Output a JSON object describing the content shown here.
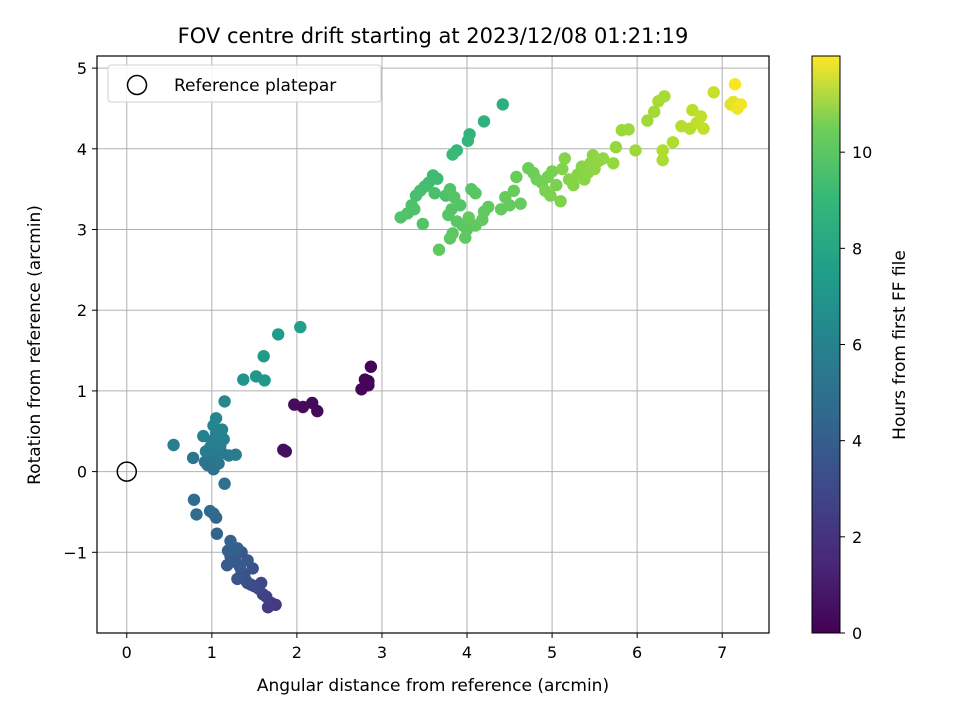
{
  "chart_data": {
    "type": "scatter",
    "title": "FOV centre drift starting at 2023/12/08 01:21:19",
    "xlabel": "Angular distance from reference (arcmin)",
    "ylabel": "Rotation from reference (arcmin)",
    "xlim": [
      -0.35,
      7.55
    ],
    "ylim": [
      -2.0,
      5.15
    ],
    "xticks": [
      0,
      1,
      2,
      3,
      4,
      5,
      6,
      7
    ],
    "yticks": [
      -1,
      0,
      1,
      2,
      3,
      4,
      5
    ],
    "grid": true,
    "legend": {
      "placement": "top-left",
      "entries": [
        {
          "label": "Reference platepar",
          "marker": "open-circle"
        }
      ]
    },
    "reference_point": {
      "x": 0,
      "y": 0
    },
    "colorbar": {
      "label": "Hours from first FF file",
      "colormap": "viridis",
      "range": [
        0,
        12
      ],
      "ticks": [
        0,
        2,
        4,
        6,
        8,
        10
      ]
    },
    "point_color_value": "hours",
    "points": [
      {
        "x": 2.87,
        "y": 1.3,
        "hours": 0.1
      },
      {
        "x": 2.84,
        "y": 1.12,
        "hours": 0.12
      },
      {
        "x": 2.8,
        "y": 1.14,
        "hours": 0.14
      },
      {
        "x": 2.84,
        "y": 1.07,
        "hours": 0.16
      },
      {
        "x": 2.76,
        "y": 1.02,
        "hours": 0.18
      },
      {
        "x": 2.24,
        "y": 0.75,
        "hours": 0.25
      },
      {
        "x": 2.18,
        "y": 0.85,
        "hours": 0.28
      },
      {
        "x": 2.07,
        "y": 0.8,
        "hours": 0.3
      },
      {
        "x": 1.97,
        "y": 0.83,
        "hours": 0.33
      },
      {
        "x": 1.84,
        "y": 0.27,
        "hours": 0.45
      },
      {
        "x": 1.87,
        "y": 0.25,
        "hours": 0.48
      },
      {
        "x": 1.75,
        "y": -1.65,
        "hours": 2.0
      },
      {
        "x": 1.7,
        "y": -1.63,
        "hours": 2.1
      },
      {
        "x": 1.66,
        "y": -1.68,
        "hours": 2.2
      },
      {
        "x": 1.64,
        "y": -1.55,
        "hours": 2.3
      },
      {
        "x": 1.6,
        "y": -1.52,
        "hours": 2.4
      },
      {
        "x": 1.58,
        "y": -1.38,
        "hours": 2.5
      },
      {
        "x": 1.55,
        "y": -1.45,
        "hours": 2.6
      },
      {
        "x": 1.5,
        "y": -1.42,
        "hours": 2.7
      },
      {
        "x": 1.46,
        "y": -1.4,
        "hours": 2.8
      },
      {
        "x": 1.42,
        "y": -1.38,
        "hours": 2.9
      },
      {
        "x": 1.4,
        "y": -1.35,
        "hours": 3.0
      },
      {
        "x": 1.48,
        "y": -1.2,
        "hours": 3.05
      },
      {
        "x": 1.38,
        "y": -1.28,
        "hours": 3.1
      },
      {
        "x": 1.35,
        "y": -1.25,
        "hours": 3.15
      },
      {
        "x": 1.3,
        "y": -1.33,
        "hours": 3.2
      },
      {
        "x": 1.42,
        "y": -1.1,
        "hours": 3.25
      },
      {
        "x": 1.35,
        "y": -1.0,
        "hours": 3.3
      },
      {
        "x": 1.33,
        "y": -1.18,
        "hours": 3.35
      },
      {
        "x": 1.28,
        "y": -1.12,
        "hours": 3.4
      },
      {
        "x": 1.22,
        "y": -1.05,
        "hours": 3.45
      },
      {
        "x": 1.18,
        "y": -1.16,
        "hours": 3.5
      },
      {
        "x": 1.25,
        "y": -0.98,
        "hours": 3.55
      },
      {
        "x": 1.19,
        "y": -0.98,
        "hours": 3.6
      },
      {
        "x": 1.3,
        "y": -0.95,
        "hours": 3.65
      },
      {
        "x": 1.22,
        "y": -0.86,
        "hours": 3.7
      },
      {
        "x": 1.06,
        "y": -0.77,
        "hours": 3.8
      },
      {
        "x": 1.05,
        "y": -0.57,
        "hours": 3.9
      },
      {
        "x": 1.02,
        "y": -0.52,
        "hours": 4.0
      },
      {
        "x": 0.98,
        "y": -0.49,
        "hours": 4.1
      },
      {
        "x": 0.82,
        "y": -0.53,
        "hours": 4.2
      },
      {
        "x": 0.79,
        "y": -0.35,
        "hours": 4.3
      },
      {
        "x": 1.15,
        "y": -0.15,
        "hours": 4.4
      },
      {
        "x": 1.02,
        "y": 0.03,
        "hours": 4.5
      },
      {
        "x": 0.95,
        "y": 0.08,
        "hours": 4.55
      },
      {
        "x": 0.92,
        "y": 0.12,
        "hours": 4.6
      },
      {
        "x": 1.08,
        "y": 0.1,
        "hours": 4.65
      },
      {
        "x": 0.78,
        "y": 0.17,
        "hours": 4.7
      },
      {
        "x": 1.0,
        "y": 0.18,
        "hours": 4.75
      },
      {
        "x": 1.05,
        "y": 0.22,
        "hours": 4.8
      },
      {
        "x": 1.12,
        "y": 0.23,
        "hours": 4.85
      },
      {
        "x": 1.2,
        "y": 0.2,
        "hours": 4.9
      },
      {
        "x": 1.28,
        "y": 0.21,
        "hours": 4.95
      },
      {
        "x": 0.93,
        "y": 0.25,
        "hours": 5.0
      },
      {
        "x": 0.98,
        "y": 0.3,
        "hours": 5.05
      },
      {
        "x": 1.1,
        "y": 0.32,
        "hours": 5.1
      },
      {
        "x": 0.55,
        "y": 0.33,
        "hours": 5.15
      },
      {
        "x": 1.0,
        "y": 0.38,
        "hours": 5.2
      },
      {
        "x": 1.14,
        "y": 0.4,
        "hours": 5.25
      },
      {
        "x": 0.9,
        "y": 0.44,
        "hours": 5.3
      },
      {
        "x": 1.05,
        "y": 0.48,
        "hours": 5.35
      },
      {
        "x": 1.12,
        "y": 0.52,
        "hours": 5.4
      },
      {
        "x": 1.02,
        "y": 0.57,
        "hours": 5.45
      },
      {
        "x": 1.05,
        "y": 0.66,
        "hours": 5.5
      },
      {
        "x": 1.15,
        "y": 0.87,
        "hours": 5.6
      },
      {
        "x": 1.37,
        "y": 1.14,
        "hours": 6.2
      },
      {
        "x": 1.52,
        "y": 1.18,
        "hours": 6.3
      },
      {
        "x": 1.62,
        "y": 1.13,
        "hours": 6.4
      },
      {
        "x": 1.61,
        "y": 1.43,
        "hours": 6.5
      },
      {
        "x": 1.78,
        "y": 1.7,
        "hours": 6.6
      },
      {
        "x": 2.04,
        "y": 1.79,
        "hours": 6.7
      },
      {
        "x": 4.42,
        "y": 4.55,
        "hours": 7.6
      },
      {
        "x": 4.2,
        "y": 4.34,
        "hours": 7.7
      },
      {
        "x": 4.03,
        "y": 4.18,
        "hours": 7.8
      },
      {
        "x": 4.01,
        "y": 4.1,
        "hours": 7.9
      },
      {
        "x": 3.88,
        "y": 3.98,
        "hours": 8.0
      },
      {
        "x": 3.83,
        "y": 3.93,
        "hours": 8.1
      },
      {
        "x": 3.6,
        "y": 3.67,
        "hours": 8.2
      },
      {
        "x": 3.65,
        "y": 3.63,
        "hours": 8.25
      },
      {
        "x": 3.55,
        "y": 3.58,
        "hours": 8.3
      },
      {
        "x": 3.5,
        "y": 3.53,
        "hours": 8.35
      },
      {
        "x": 3.45,
        "y": 3.48,
        "hours": 8.4
      },
      {
        "x": 3.4,
        "y": 3.42,
        "hours": 8.45
      },
      {
        "x": 3.62,
        "y": 3.45,
        "hours": 8.5
      },
      {
        "x": 3.75,
        "y": 3.42,
        "hours": 8.55
      },
      {
        "x": 3.35,
        "y": 3.3,
        "hours": 8.6
      },
      {
        "x": 3.38,
        "y": 3.25,
        "hours": 8.62
      },
      {
        "x": 3.3,
        "y": 3.2,
        "hours": 8.65
      },
      {
        "x": 3.22,
        "y": 3.15,
        "hours": 8.68
      },
      {
        "x": 3.48,
        "y": 3.07,
        "hours": 8.7
      },
      {
        "x": 3.8,
        "y": 3.5,
        "hours": 8.72
      },
      {
        "x": 3.85,
        "y": 3.4,
        "hours": 8.74
      },
      {
        "x": 3.92,
        "y": 3.3,
        "hours": 8.76
      },
      {
        "x": 3.82,
        "y": 3.25,
        "hours": 8.78
      },
      {
        "x": 3.78,
        "y": 3.18,
        "hours": 8.8
      },
      {
        "x": 4.05,
        "y": 3.5,
        "hours": 8.82
      },
      {
        "x": 4.1,
        "y": 3.45,
        "hours": 8.84
      },
      {
        "x": 3.88,
        "y": 3.1,
        "hours": 8.86
      },
      {
        "x": 3.95,
        "y": 3.05,
        "hours": 8.88
      },
      {
        "x": 4.0,
        "y": 3.0,
        "hours": 8.9
      },
      {
        "x": 3.83,
        "y": 2.95,
        "hours": 8.92
      },
      {
        "x": 3.8,
        "y": 2.89,
        "hours": 8.94
      },
      {
        "x": 3.67,
        "y": 2.75,
        "hours": 8.96
      },
      {
        "x": 3.98,
        "y": 2.9,
        "hours": 8.98
      },
      {
        "x": 4.1,
        "y": 3.05,
        "hours": 9.0
      },
      {
        "x": 4.18,
        "y": 3.12,
        "hours": 9.02
      },
      {
        "x": 4.2,
        "y": 3.22,
        "hours": 9.04
      },
      {
        "x": 4.25,
        "y": 3.28,
        "hours": 9.06
      },
      {
        "x": 4.02,
        "y": 3.15,
        "hours": 9.08
      },
      {
        "x": 4.4,
        "y": 3.25,
        "hours": 9.1
      },
      {
        "x": 4.5,
        "y": 3.3,
        "hours": 9.12
      },
      {
        "x": 4.63,
        "y": 3.32,
        "hours": 9.14
      },
      {
        "x": 4.45,
        "y": 3.4,
        "hours": 9.16
      },
      {
        "x": 4.55,
        "y": 3.48,
        "hours": 9.18
      },
      {
        "x": 4.58,
        "y": 3.65,
        "hours": 9.2
      },
      {
        "x": 4.72,
        "y": 3.76,
        "hours": 9.25
      },
      {
        "x": 4.78,
        "y": 3.7,
        "hours": 9.3
      },
      {
        "x": 4.82,
        "y": 3.62,
        "hours": 9.35
      },
      {
        "x": 4.88,
        "y": 3.58,
        "hours": 9.4
      },
      {
        "x": 4.95,
        "y": 3.65,
        "hours": 9.45
      },
      {
        "x": 5.0,
        "y": 3.72,
        "hours": 9.5
      },
      {
        "x": 5.05,
        "y": 3.55,
        "hours": 9.55
      },
      {
        "x": 4.92,
        "y": 3.48,
        "hours": 9.58
      },
      {
        "x": 4.98,
        "y": 3.42,
        "hours": 9.6
      },
      {
        "x": 5.1,
        "y": 3.35,
        "hours": 9.65
      },
      {
        "x": 5.12,
        "y": 3.75,
        "hours": 9.7
      },
      {
        "x": 5.15,
        "y": 3.88,
        "hours": 9.72
      },
      {
        "x": 5.2,
        "y": 3.62,
        "hours": 9.75
      },
      {
        "x": 5.25,
        "y": 3.55,
        "hours": 9.78
      },
      {
        "x": 5.3,
        "y": 3.68,
        "hours": 9.8
      },
      {
        "x": 5.35,
        "y": 3.78,
        "hours": 9.83
      },
      {
        "x": 5.38,
        "y": 3.62,
        "hours": 9.85
      },
      {
        "x": 5.42,
        "y": 3.7,
        "hours": 9.88
      },
      {
        "x": 5.45,
        "y": 3.82,
        "hours": 9.9
      },
      {
        "x": 5.48,
        "y": 3.92,
        "hours": 9.93
      },
      {
        "x": 5.5,
        "y": 3.75,
        "hours": 9.95
      },
      {
        "x": 5.55,
        "y": 3.85,
        "hours": 9.98
      },
      {
        "x": 5.6,
        "y": 3.88,
        "hours": 10.0
      },
      {
        "x": 5.72,
        "y": 3.82,
        "hours": 10.05
      },
      {
        "x": 5.75,
        "y": 4.02,
        "hours": 10.1
      },
      {
        "x": 5.82,
        "y": 4.23,
        "hours": 10.15
      },
      {
        "x": 5.9,
        "y": 4.24,
        "hours": 10.2
      },
      {
        "x": 5.98,
        "y": 3.98,
        "hours": 10.25
      },
      {
        "x": 6.12,
        "y": 4.35,
        "hours": 10.3
      },
      {
        "x": 6.2,
        "y": 4.46,
        "hours": 10.35
      },
      {
        "x": 6.25,
        "y": 4.59,
        "hours": 10.4
      },
      {
        "x": 6.32,
        "y": 4.65,
        "hours": 10.45
      },
      {
        "x": 6.3,
        "y": 3.86,
        "hours": 10.5
      },
      {
        "x": 6.3,
        "y": 3.98,
        "hours": 10.55
      },
      {
        "x": 6.42,
        "y": 4.08,
        "hours": 10.6
      },
      {
        "x": 6.52,
        "y": 4.28,
        "hours": 10.65
      },
      {
        "x": 6.62,
        "y": 4.25,
        "hours": 10.7
      },
      {
        "x": 6.65,
        "y": 4.48,
        "hours": 10.75
      },
      {
        "x": 6.7,
        "y": 4.32,
        "hours": 10.8
      },
      {
        "x": 6.75,
        "y": 4.4,
        "hours": 10.85
      },
      {
        "x": 6.78,
        "y": 4.25,
        "hours": 10.9
      },
      {
        "x": 6.9,
        "y": 4.7,
        "hours": 11.0
      },
      {
        "x": 7.1,
        "y": 4.55,
        "hours": 11.4
      },
      {
        "x": 7.13,
        "y": 4.58,
        "hours": 11.5
      },
      {
        "x": 7.16,
        "y": 4.52,
        "hours": 11.6
      },
      {
        "x": 7.18,
        "y": 4.5,
        "hours": 11.7
      },
      {
        "x": 7.22,
        "y": 4.55,
        "hours": 11.8
      },
      {
        "x": 7.15,
        "y": 4.8,
        "hours": 11.9
      }
    ]
  }
}
